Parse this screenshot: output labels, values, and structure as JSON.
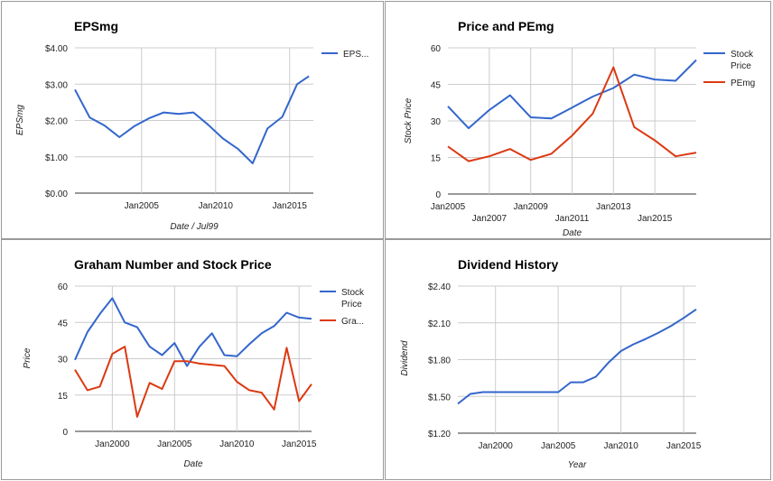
{
  "chart_data": [
    {
      "id": "p0",
      "type": "line",
      "title": "EPSmg",
      "xlabel": "Date / Jul99",
      "ylabel": "EPSmg",
      "ylim": [
        0,
        4
      ],
      "yticks": [
        "$0.00",
        "$1.00",
        "$2.00",
        "$3.00",
        "$4.00"
      ],
      "xlim": [
        2000.5,
        2016.6
      ],
      "xticks": [
        {
          "label": "Jan2005",
          "v": 2005
        },
        {
          "label": "Jan2010",
          "v": 2010
        },
        {
          "label": "Jan2015",
          "v": 2015
        }
      ],
      "grid": true,
      "legend": "right",
      "series": [
        {
          "name": "EPS...",
          "color": "#3366cc",
          "x": [
            2000.5,
            2001.5,
            2002.5,
            2003.5,
            2004.5,
            2005.5,
            2006.5,
            2007.5,
            2008.5,
            2009.5,
            2010.5,
            2011.5,
            2012.5,
            2013.5,
            2014.5,
            2015.5,
            2016.3
          ],
          "y": [
            2.85,
            2.08,
            1.86,
            1.54,
            1.84,
            2.06,
            2.22,
            2.18,
            2.22,
            1.88,
            1.5,
            1.22,
            0.82,
            1.78,
            2.1,
            3.0,
            3.22
          ]
        }
      ]
    },
    {
      "id": "p1",
      "type": "line",
      "title": "Price and PEmg",
      "xlabel": "Date",
      "ylabel": "Stock Price",
      "ylim": [
        0,
        60
      ],
      "yticks": [
        "0",
        "15",
        "30",
        "45",
        "60"
      ],
      "xlim": [
        2005,
        2017
      ],
      "xticks": [
        {
          "label": "Jan2005",
          "v": 2005,
          "row": 0
        },
        {
          "label": "Jan2007",
          "v": 2007,
          "row": 1
        },
        {
          "label": "Jan2009",
          "v": 2009,
          "row": 0
        },
        {
          "label": "Jan2011",
          "v": 2011,
          "row": 1
        },
        {
          "label": "Jan2013",
          "v": 2013,
          "row": 0
        },
        {
          "label": "Jan2015",
          "v": 2015,
          "row": 1
        }
      ],
      "grid": true,
      "legend": "right",
      "series": [
        {
          "name": "Stock Price",
          "color": "#3366cc",
          "x": [
            2005,
            2006,
            2007,
            2008,
            2009,
            2010,
            2011,
            2012,
            2013,
            2014,
            2015,
            2016,
            2017
          ],
          "y": [
            36,
            27,
            34.5,
            40.5,
            31.5,
            31,
            35.5,
            40,
            43.5,
            49,
            47,
            46.5,
            55
          ]
        },
        {
          "name": "PEmg",
          "color": "#dc3912",
          "x": [
            2005,
            2006,
            2007,
            2008,
            2009,
            2010,
            2011,
            2012,
            2013,
            2014,
            2015,
            2016,
            2017
          ],
          "y": [
            19.5,
            13.5,
            15.5,
            18.5,
            14,
            16.5,
            24,
            33,
            52,
            27.5,
            22,
            15.5,
            17
          ]
        }
      ]
    },
    {
      "id": "p2",
      "type": "line",
      "title": "Graham Number and Stock Price",
      "xlabel": "Date",
      "ylabel": "Price",
      "ylim": [
        0,
        60
      ],
      "yticks": [
        "0",
        "15",
        "30",
        "45",
        "60"
      ],
      "xlim": [
        1997,
        2016
      ],
      "xticks": [
        {
          "label": "Jan2000",
          "v": 2000
        },
        {
          "label": "Jan2005",
          "v": 2005
        },
        {
          "label": "Jan2010",
          "v": 2010
        },
        {
          "label": "Jan2015",
          "v": 2015
        }
      ],
      "grid": true,
      "legend": "right",
      "series": [
        {
          "name": "Stock Price",
          "color": "#3366cc",
          "x": [
            1997,
            1998,
            1999,
            2000,
            2001,
            2002,
            2003,
            2004,
            2005,
            2006,
            2007,
            2008,
            2009,
            2010,
            2011,
            2012,
            2013,
            2014,
            2015,
            2016
          ],
          "y": [
            29.5,
            41,
            48.5,
            55,
            45,
            43,
            35,
            31.5,
            36.5,
            27,
            35,
            40.5,
            31.5,
            31,
            36,
            40.5,
            43.5,
            49,
            47,
            46.5
          ]
        },
        {
          "name": "Gra...",
          "color": "#dc3912",
          "x": [
            1997,
            1998,
            1999,
            2000,
            2001,
            2002,
            2003,
            2004,
            2005,
            2006,
            2007,
            2008,
            2009,
            2010,
            2011,
            2012,
            2013,
            2014,
            2015,
            2016
          ],
          "y": [
            25.5,
            17,
            18.5,
            32,
            35,
            6,
            20,
            17.5,
            29,
            29,
            28,
            27.5,
            27,
            20.5,
            17,
            16,
            9,
            34.5,
            12.5,
            19.5
          ]
        }
      ]
    },
    {
      "id": "p3",
      "type": "line",
      "title": "Dividend History",
      "xlabel": "Year",
      "ylabel": "Dividend",
      "ylim": [
        1.2,
        2.4
      ],
      "yticks": [
        "$1.20",
        "$1.50",
        "$1.80",
        "$2.10",
        "$2.40"
      ],
      "xlim": [
        1997,
        2016
      ],
      "xticks": [
        {
          "label": "Jan2000",
          "v": 2000
        },
        {
          "label": "Jan2005",
          "v": 2005
        },
        {
          "label": "Jan2010",
          "v": 2010
        },
        {
          "label": "Jan2015",
          "v": 2015
        }
      ],
      "grid": true,
      "legend": "none",
      "series": [
        {
          "name": "Dividend",
          "color": "#3366cc",
          "x": [
            1997,
            1998,
            1999,
            2000,
            2001,
            2002,
            2003,
            2004,
            2005,
            2006,
            2007,
            2008,
            2009,
            2010,
            2011,
            2012,
            2013,
            2014,
            2015,
            2016
          ],
          "y": [
            1.44,
            1.52,
            1.535,
            1.535,
            1.535,
            1.535,
            1.535,
            1.535,
            1.535,
            1.615,
            1.615,
            1.66,
            1.775,
            1.87,
            1.925,
            1.97,
            2.02,
            2.075,
            2.14,
            2.21
          ]
        }
      ]
    }
  ]
}
